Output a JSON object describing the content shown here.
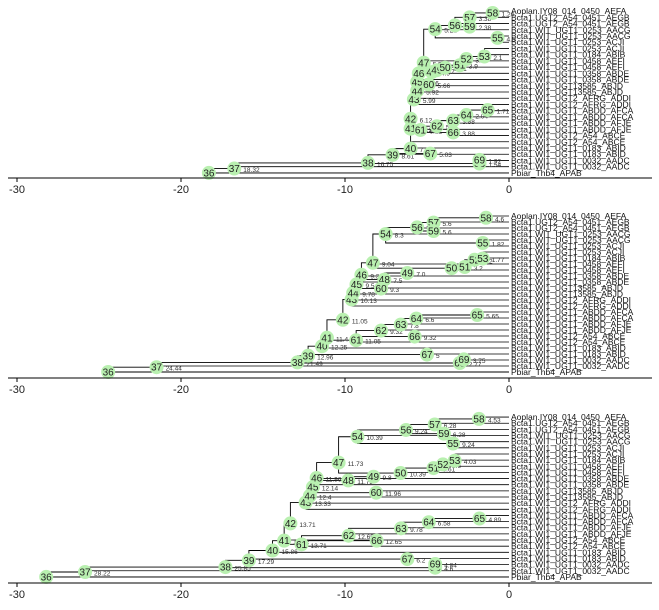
{
  "domain": "Diagram",
  "axis": {
    "ticks": [
      -30,
      -20,
      -10,
      0
    ],
    "xlim": [
      -30.5,
      0
    ]
  },
  "colors": {
    "node": "#b9f0b0",
    "line": "#000000",
    "axis": "#000000"
  },
  "leaves": [
    "Aoplan.IY08_014_0450_AEFA",
    "Bcta1.UGT2_A54_0451_AEGB",
    "Bcta1.UGT2_A54_0451_AEGB",
    "Bcta1.WIT_UGT1_0253_AACG",
    "Bcta1.WIT_UGT1_0253_AACG",
    "Bcta1.WI1_UGT1_0253_ACJI",
    "Bcta1.WI1_UGT1_0253_ACJI",
    "Bcta1.WI1_UGT1_0184_ABIB",
    "Bcta1.WI1_UGT1_0458_AEFI",
    "Bcta1.WI1_UGT1_0458_AEFI",
    "Bcta1.WI1_UGT1_0358_ABDE",
    "Bcta1.WI1_UGT1_0358_ABDE",
    "Bcta1.WI1_UGT13585_ABJD",
    "Bcta1.WI1_UGT13585_ABJD",
    "Bcta1.WI1_UGT2_AFRG_ADDI",
    "Bcta1.WI1_UGT2_AFRG_ADDI",
    "Bcta1.WI1_UGT1_ABDD_AFCA",
    "Bcta1.WI1_UGT1_ABDD_AFCA",
    "Bcta1.WI1_UGT1_ABDD_AFJE",
    "Bcta1.WI1_UGT1_ABDD_AFJE",
    "Bcta1.WI1_UGT2_A54_ABCE",
    "Bcta1.WI1_UGT2_A54_ABCE",
    "Bcta1.WI1_UGT1_0183_ABID",
    "Bcta1.WI1_UGT1_0183_ABID",
    "Bcta1.WI1_UGT1_0032_AADC",
    "Bcta1.WI1_UGT1_0032_AADC",
    "Pbiar_Thb4_APAB"
  ],
  "trees": [
    {
      "nodes": [
        {
          "id": "36",
          "x": -18.3,
          "y": 26.5,
          "p": null,
          "l": ""
        },
        {
          "id": "37",
          "x": -16.75,
          "y": 25.8,
          "p": "36",
          "l": "18.32"
        },
        {
          "id": "38",
          "x": -8.6,
          "y": 24.9,
          "p": "37",
          "l": "16.75"
        },
        {
          "id": "39",
          "x": -7.1,
          "y": 23.6,
          "p": "38",
          "l": "8.61"
        },
        {
          "id": "40",
          "x": -6.0,
          "y": 22.6,
          "p": "39",
          "l": "7.12"
        },
        {
          "id": "41",
          "x": -6.0,
          "y": 19.4,
          "p": "40",
          "l": "6.12"
        },
        {
          "id": "42",
          "x": -6.0,
          "y": 17.8,
          "p": "41",
          "l": "6.12"
        },
        {
          "id": "43",
          "x": -5.8,
          "y": 14.7,
          "p": "42",
          "l": "5.99"
        },
        {
          "id": "44",
          "x": -5.6,
          "y": 13.3,
          "p": "43",
          "l": "5.92"
        },
        {
          "id": "45",
          "x": -5.6,
          "y": 11.9,
          "p": "44",
          "l": "5.66"
        },
        {
          "id": "46",
          "x": -5.5,
          "y": 10.5,
          "p": "45",
          "l": "5.6"
        },
        {
          "id": "47",
          "x": -5.2,
          "y": 8.8,
          "p": "46",
          "l": "5.5"
        },
        {
          "id": "48",
          "x": -4.7,
          "y": 10.3,
          "p": "46",
          "l": "4.9"
        },
        {
          "id": "49",
          "x": -4.4,
          "y": 10.0,
          "p": "48",
          "l": "4.7"
        },
        {
          "id": "50",
          "x": -3.9,
          "y": 9.6,
          "p": "47",
          "l": "5.21"
        },
        {
          "id": "51",
          "x": -3.0,
          "y": 9.2,
          "p": "50",
          "l": "3.9"
        },
        {
          "id": "52",
          "x": -2.6,
          "y": 8.2,
          "p": "51",
          "l": "3.05"
        },
        {
          "id": "53",
          "x": -1.5,
          "y": 7.8,
          "p": "52",
          "l": "2.1"
        },
        {
          "id": "54",
          "x": -4.5,
          "y": 3.4,
          "p": "47",
          "l": "5.21"
        },
        {
          "id": "55",
          "x": -0.7,
          "y": 4.8,
          "p": "54",
          "l": "4.5"
        },
        {
          "id": "56",
          "x": -3.3,
          "y": 2.8,
          "p": "54",
          "l": "4.5"
        },
        {
          "id": "57",
          "x": -2.4,
          "y": 1.5,
          "p": "56",
          "l": "3.38"
        },
        {
          "id": "58",
          "x": -1.0,
          "y": 0.8,
          "p": "57",
          "l": "1.24"
        },
        {
          "id": "59",
          "x": -2.4,
          "y": 3.0,
          "p": "56",
          "l": "2.38"
        },
        {
          "id": "60",
          "x": -4.9,
          "y": 12.3,
          "p": "45",
          "l": "5.66"
        },
        {
          "id": "61",
          "x": -5.4,
          "y": 19.6,
          "p": "41",
          "l": "6.12"
        },
        {
          "id": "62",
          "x": -4.4,
          "y": 19.0,
          "p": "61",
          "l": "5.2"
        },
        {
          "id": "63",
          "x": -3.4,
          "y": 18.1,
          "p": "62",
          "l": "3.88"
        },
        {
          "id": "64",
          "x": -2.6,
          "y": 17.2,
          "p": "63",
          "l": "2.04"
        },
        {
          "id": "65",
          "x": -1.3,
          "y": 16.4,
          "p": "64",
          "l": "1.71"
        },
        {
          "id": "66",
          "x": -3.4,
          "y": 20.0,
          "p": "61",
          "l": "3.88"
        },
        {
          "id": "67",
          "x": -4.8,
          "y": 23.4,
          "p": "39",
          "l": "5.03"
        },
        {
          "id": "68",
          "x": -1.8,
          "y": 25.0,
          "p": "38",
          "l": "1.54"
        },
        {
          "id": "69",
          "x": -1.8,
          "y": 24.4,
          "p": "68",
          "l": "1.92"
        }
      ]
    },
    {
      "nodes": [
        {
          "id": "36",
          "x": -24.44,
          "y": 26.5,
          "p": null,
          "l": ""
        },
        {
          "id": "37",
          "x": -21.49,
          "y": 25.7,
          "p": "36",
          "l": "24.44"
        },
        {
          "id": "38",
          "x": -12.9,
          "y": 24.9,
          "p": "37",
          "l": "21.49"
        },
        {
          "id": "39",
          "x": -12.25,
          "y": 23.8,
          "p": "38",
          "l": "12.96"
        },
        {
          "id": "40",
          "x": -11.4,
          "y": 22.2,
          "p": "39",
          "l": "12.25"
        },
        {
          "id": "41",
          "x": -11.1,
          "y": 20.8,
          "p": "40",
          "l": "11.4"
        },
        {
          "id": "42",
          "x": -10.13,
          "y": 17.8,
          "p": "41",
          "l": "11.05"
        },
        {
          "id": "43",
          "x": -9.6,
          "y": 14.4,
          "p": "42",
          "l": "10.13"
        },
        {
          "id": "44",
          "x": -9.5,
          "y": 13.3,
          "p": "43",
          "l": "9.78"
        },
        {
          "id": "45",
          "x": -9.3,
          "y": 11.9,
          "p": "44",
          "l": "9.5"
        },
        {
          "id": "46",
          "x": -9.0,
          "y": 10.3,
          "p": "45",
          "l": "9.3"
        },
        {
          "id": "47",
          "x": -8.3,
          "y": 8.3,
          "p": "46",
          "l": "9.04"
        },
        {
          "id": "48",
          "x": -7.6,
          "y": 11.1,
          "p": "46",
          "l": "7.5"
        },
        {
          "id": "49",
          "x": -6.2,
          "y": 10.0,
          "p": "48",
          "l": "7.0"
        },
        {
          "id": "50",
          "x": -3.5,
          "y": 9.2,
          "p": "47",
          "l": "8.3"
        },
        {
          "id": "51",
          "x": -2.7,
          "y": 9.0,
          "p": "50",
          "l": "3.2"
        },
        {
          "id": "52",
          "x": -2.1,
          "y": 7.8,
          "p": "51",
          "l": "3.2"
        },
        {
          "id": "53",
          "x": -1.6,
          "y": 7.6,
          "p": "52",
          "l": "1.77"
        },
        {
          "id": "54",
          "x": -7.52,
          "y": 3.5,
          "p": "47",
          "l": "8.3"
        },
        {
          "id": "55",
          "x": -1.6,
          "y": 5.0,
          "p": "54",
          "l": "1.82"
        },
        {
          "id": "56",
          "x": -5.6,
          "y": 2.4,
          "p": "54",
          "l": "7.52"
        },
        {
          "id": "57",
          "x": -4.6,
          "y": 1.6,
          "p": "56",
          "l": "5.6"
        },
        {
          "id": "58",
          "x": -1.4,
          "y": 0.8,
          "p": "57",
          "l": "4.6"
        },
        {
          "id": "59",
          "x": -4.6,
          "y": 3.0,
          "p": "56",
          "l": "5.6"
        },
        {
          "id": "60",
          "x": -7.8,
          "y": 12.6,
          "p": "45",
          "l": "9.3"
        },
        {
          "id": "61",
          "x": -9.32,
          "y": 21.2,
          "p": "41",
          "l": "11.05"
        },
        {
          "id": "62",
          "x": -7.8,
          "y": 19.6,
          "p": "61",
          "l": "9.32"
        },
        {
          "id": "63",
          "x": -6.6,
          "y": 18.6,
          "p": "62",
          "l": "7.8"
        },
        {
          "id": "64",
          "x": -5.65,
          "y": 17.6,
          "p": "63",
          "l": "6.6"
        },
        {
          "id": "65",
          "x": -1.94,
          "y": 17.0,
          "p": "64",
          "l": "5.65"
        },
        {
          "id": "66",
          "x": -5.75,
          "y": 20.6,
          "p": "61",
          "l": "9.32"
        },
        {
          "id": "67",
          "x": -5.0,
          "y": 23.6,
          "p": "39",
          "l": "5"
        },
        {
          "id": "68",
          "x": -3.0,
          "y": 25.0,
          "p": "38",
          "l": "2.77"
        },
        {
          "id": "69",
          "x": -2.75,
          "y": 24.4,
          "p": "68",
          "l": "3.75"
        }
      ]
    },
    {
      "nodes": [
        {
          "id": "36",
          "x": -28.22,
          "y": 26.5,
          "p": null,
          "l": ""
        },
        {
          "id": "37",
          "x": -25.85,
          "y": 25.7,
          "p": "36",
          "l": "28.22"
        },
        {
          "id": "38",
          "x": -17.29,
          "y": 24.9,
          "p": "37",
          "l": "25.85"
        },
        {
          "id": "39",
          "x": -15.86,
          "y": 23.8,
          "p": "38",
          "l": "17.29"
        },
        {
          "id": "40",
          "x": -14.42,
          "y": 22.2,
          "p": "39",
          "l": "15.86"
        },
        {
          "id": "41",
          "x": -13.71,
          "y": 20.6,
          "p": "40",
          "l": "14.42"
        },
        {
          "id": "42",
          "x": -13.33,
          "y": 17.8,
          "p": "41",
          "l": "13.71"
        },
        {
          "id": "43",
          "x": -12.4,
          "y": 14.4,
          "p": "42",
          "l": "13.33"
        },
        {
          "id": "44",
          "x": -12.14,
          "y": 13.3,
          "p": "43",
          "l": "12.4"
        },
        {
          "id": "45",
          "x": -11.96,
          "y": 11.9,
          "p": "44",
          "l": "12.14"
        },
        {
          "id": "46",
          "x": -11.73,
          "y": 10.4,
          "p": "45",
          "l": "11.96"
        },
        {
          "id": "47",
          "x": -10.39,
          "y": 7.9,
          "p": "46",
          "l": "11.73"
        },
        {
          "id": "48",
          "x": -9.8,
          "y": 10.8,
          "p": "46",
          "l": "11.73"
        },
        {
          "id": "49",
          "x": -8.26,
          "y": 10.2,
          "p": "48",
          "l": "9.8"
        },
        {
          "id": "50",
          "x": -6.61,
          "y": 9.6,
          "p": "47",
          "l": "10.39"
        },
        {
          "id": "51",
          "x": -4.6,
          "y": 8.8,
          "p": "50",
          "l": "6.61"
        },
        {
          "id": "52",
          "x": -4.03,
          "y": 8.2,
          "p": "51",
          "l": "4.6"
        },
        {
          "id": "53",
          "x": -3.31,
          "y": 7.6,
          "p": "52",
          "l": "4.03"
        },
        {
          "id": "54",
          "x": -9.24,
          "y": 3.7,
          "p": "47",
          "l": "10.39"
        },
        {
          "id": "55",
          "x": -3.41,
          "y": 4.8,
          "p": "54",
          "l": "9.24"
        },
        {
          "id": "56",
          "x": -6.28,
          "y": 2.6,
          "p": "54",
          "l": "9.24"
        },
        {
          "id": "57",
          "x": -4.53,
          "y": 1.7,
          "p": "56",
          "l": "6.28"
        },
        {
          "id": "58",
          "x": -1.83,
          "y": 0.8,
          "p": "57",
          "l": "4.53"
        },
        {
          "id": "59",
          "x": -3.97,
          "y": 3.2,
          "p": "56",
          "l": "6.28"
        },
        {
          "id": "60",
          "x": -8.1,
          "y": 12.8,
          "p": "45",
          "l": "11.96"
        },
        {
          "id": "61",
          "x": -12.65,
          "y": 21.2,
          "p": "41",
          "l": "13.71"
        },
        {
          "id": "62",
          "x": -9.78,
          "y": 19.8,
          "p": "61",
          "l": "12.65"
        },
        {
          "id": "63",
          "x": -6.58,
          "y": 18.6,
          "p": "62",
          "l": "9.78"
        },
        {
          "id": "64",
          "x": -4.89,
          "y": 17.6,
          "p": "63",
          "l": "6.58"
        },
        {
          "id": "65",
          "x": -1.8,
          "y": 17.0,
          "p": "64",
          "l": "4.89"
        },
        {
          "id": "66",
          "x": -8.07,
          "y": 20.6,
          "p": "61",
          "l": "12.65"
        },
        {
          "id": "67",
          "x": -6.2,
          "y": 23.6,
          "p": "39",
          "l": "6.2"
        },
        {
          "id": "68",
          "x": -4.5,
          "y": 25.0,
          "p": "38",
          "l": "4.6"
        },
        {
          "id": "69",
          "x": -4.5,
          "y": 24.4,
          "p": "68",
          "l": "4.84"
        }
      ]
    }
  ]
}
